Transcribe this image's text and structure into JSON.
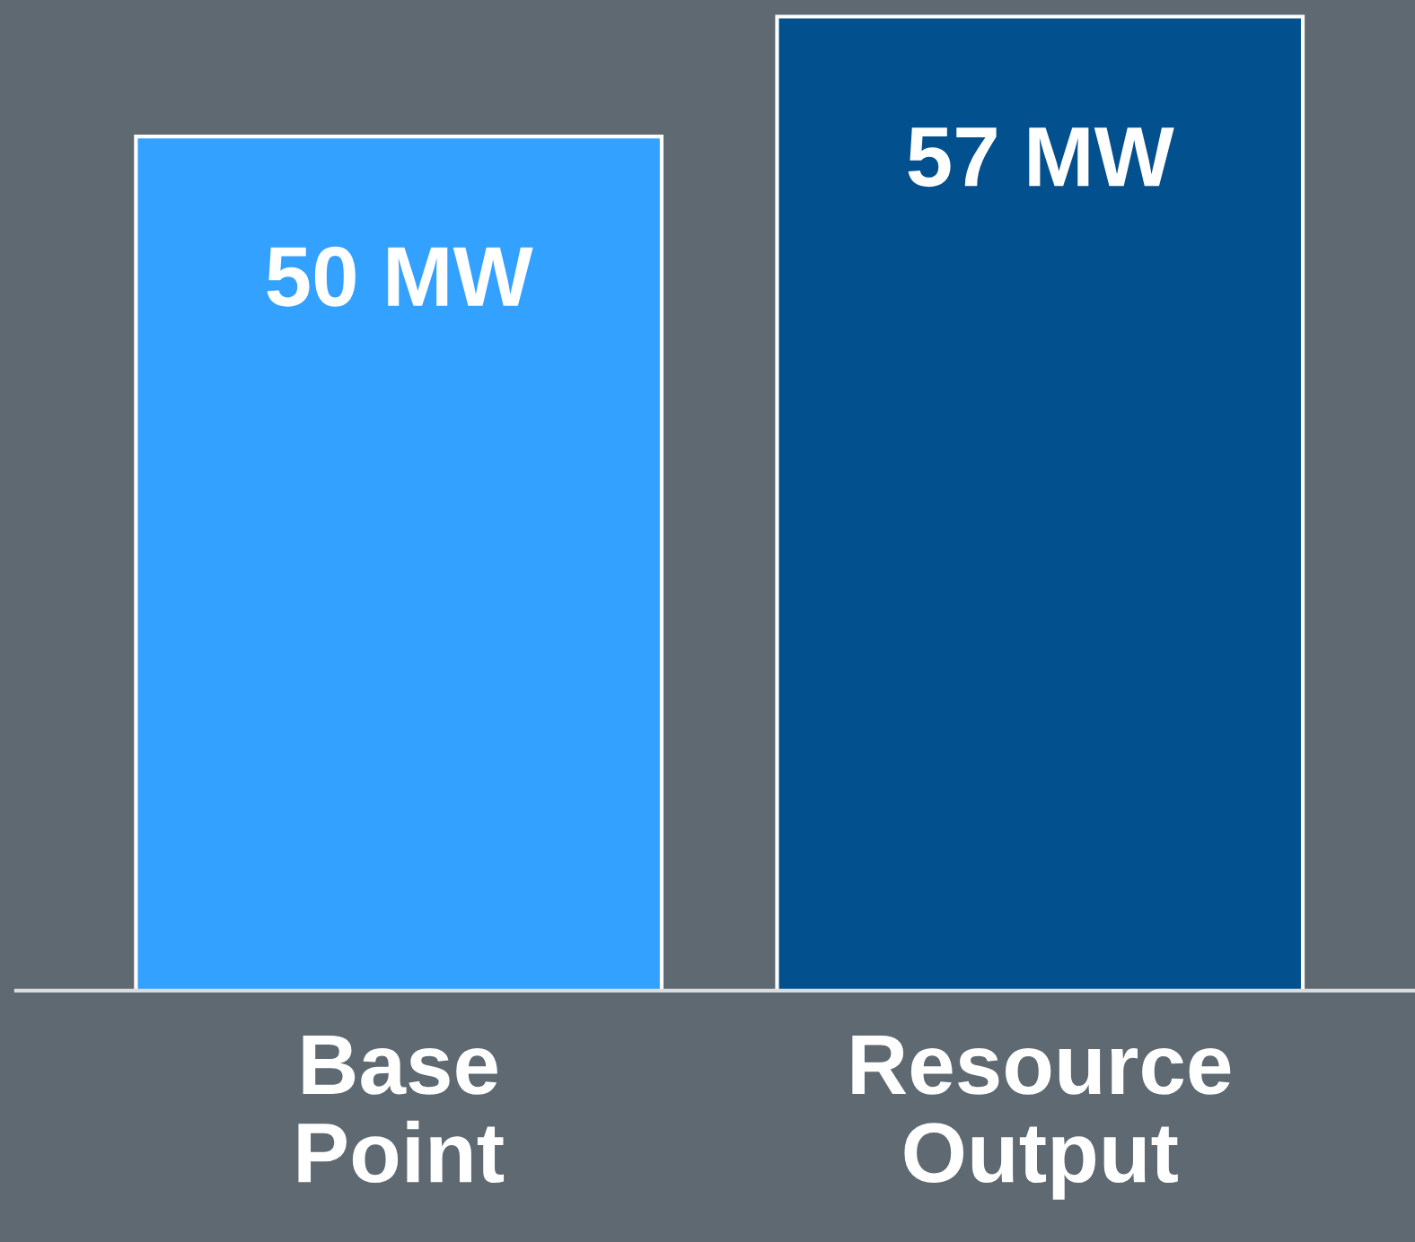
{
  "chart_data": {
    "type": "bar",
    "categories": [
      "Base\nPoint",
      "Resource\nOutput"
    ],
    "values": [
      50,
      57
    ],
    "colors": [
      "#33a1ff",
      "#03508f"
    ],
    "value_labels": [
      "50 MW",
      "57 MW"
    ]
  }
}
